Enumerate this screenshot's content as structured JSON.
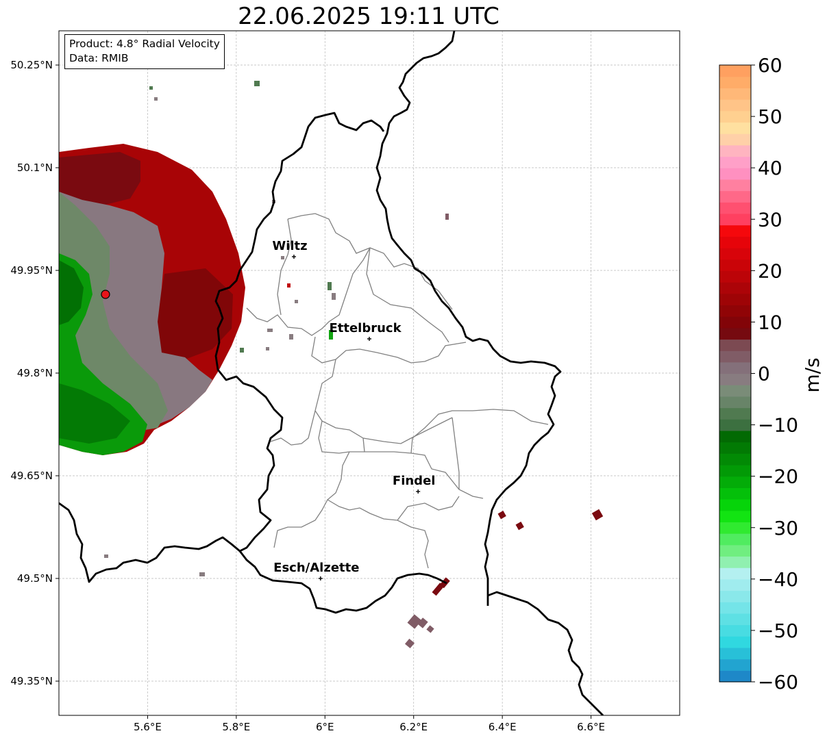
{
  "title": "22.06.2025 19:11 UTC",
  "info": {
    "product": "Product: 4.8° Radial Velocity",
    "data": "Data: RMIB"
  },
  "axes": {
    "lon_range": [
      5.4,
      6.8
    ],
    "lat_range": [
      49.3,
      50.3
    ],
    "x_ticks": [
      {
        "value": 5.6,
        "label": "5.6°E"
      },
      {
        "value": 5.8,
        "label": "5.8°E"
      },
      {
        "value": 6.0,
        "label": "6°E"
      },
      {
        "value": 6.2,
        "label": "6.2°E"
      },
      {
        "value": 6.4,
        "label": "6.4°E"
      },
      {
        "value": 6.6,
        "label": "6.6°E"
      }
    ],
    "y_ticks": [
      {
        "value": 50.25,
        "label": "50.25°N"
      },
      {
        "value": 50.1,
        "label": "50.1°N"
      },
      {
        "value": 49.95,
        "label": "49.95°N"
      },
      {
        "value": 49.8,
        "label": "49.8°N"
      },
      {
        "value": 49.65,
        "label": "49.65°N"
      },
      {
        "value": 49.5,
        "label": "49.5°N"
      },
      {
        "value": 49.35,
        "label": "49.35°N"
      }
    ]
  },
  "cities": [
    {
      "name": "Wiltz",
      "lon": 5.93,
      "lat": 49.97
    },
    {
      "name": "Ettelbruck",
      "lon": 6.1,
      "lat": 49.85
    },
    {
      "name": "Findel",
      "lon": 6.21,
      "lat": 49.627
    },
    {
      "name": "Esch/Alzette",
      "lon": 5.99,
      "lat": 49.5
    }
  ],
  "radar_site": {
    "lon": 5.505,
    "lat": 49.915,
    "color": "#e8131a"
  },
  "colorbar": {
    "label": "m/s",
    "min": -60,
    "max": 60,
    "ticks": [
      {
        "value": 60,
        "label": "60"
      },
      {
        "value": 50,
        "label": "50"
      },
      {
        "value": 40,
        "label": "40"
      },
      {
        "value": 30,
        "label": "30"
      },
      {
        "value": 20,
        "label": "20"
      },
      {
        "value": 10,
        "label": "10"
      },
      {
        "value": 0,
        "label": "0"
      },
      {
        "value": -10,
        "label": "−10"
      },
      {
        "value": -20,
        "label": "−20"
      },
      {
        "value": -30,
        "label": "−30"
      },
      {
        "value": -40,
        "label": "−40"
      },
      {
        "value": -50,
        "label": "−50"
      },
      {
        "value": -60,
        "label": "−60"
      }
    ],
    "colors": [
      "#1e88c8",
      "#22a4d0",
      "#28c0d8",
      "#30d8e0",
      "#48dce2",
      "#5ee0e4",
      "#74e4e8",
      "#8ae8ea",
      "#a0ecee",
      "#b4f0f0",
      "#90f0b0",
      "#70ee80",
      "#50ec60",
      "#30ea30",
      "#12e412",
      "#06d40a",
      "#04c00a",
      "#03ac08",
      "#029a06",
      "#028a05",
      "#027a04",
      "#026a03",
      "#3c7040",
      "#507a50",
      "#688468",
      "#7a8c78",
      "#887c80",
      "#84707a",
      "#805c66",
      "#7c4a52",
      "#760a10",
      "#820408",
      "#900406",
      "#9e0406",
      "#ac0408",
      "#bc0408",
      "#ca0408",
      "#d8040a",
      "#e6040a",
      "#f5080c",
      "#ff4060",
      "#ff5070",
      "#ff6888",
      "#ff80a0",
      "#ff90c0",
      "#ffa0c8",
      "#ffb4c0",
      "#ffd0a8",
      "#ffe0a0",
      "#ffd090",
      "#ffc488",
      "#ffb878",
      "#ffac68",
      "#ffa060"
    ]
  }
}
